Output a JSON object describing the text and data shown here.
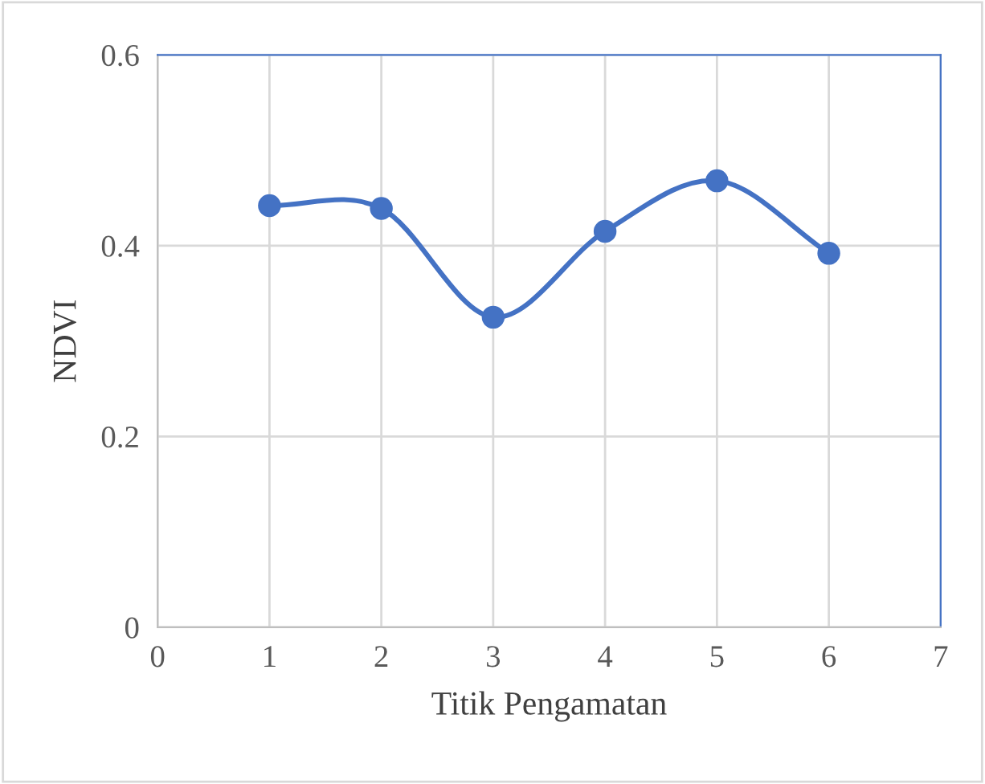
{
  "chart_data": {
    "type": "line",
    "xlabel": "Titik Pengamatan",
    "ylabel": "NDVI",
    "x": [
      1,
      2,
      3,
      4,
      5,
      6
    ],
    "series": [
      {
        "color": "#4472c4",
        "values": [
          0.442,
          0.439,
          0.325,
          0.415,
          0.468,
          0.392
        ]
      }
    ],
    "xlim": [
      0,
      7
    ],
    "xticks": [
      0,
      1,
      2,
      3,
      4,
      5,
      6,
      7
    ],
    "ylim": [
      0,
      0.6
    ],
    "yticks": [
      0,
      0.2,
      0.4,
      0.6
    ],
    "grid": true,
    "marker": "circle",
    "line_style": "solid",
    "legend": false
  }
}
